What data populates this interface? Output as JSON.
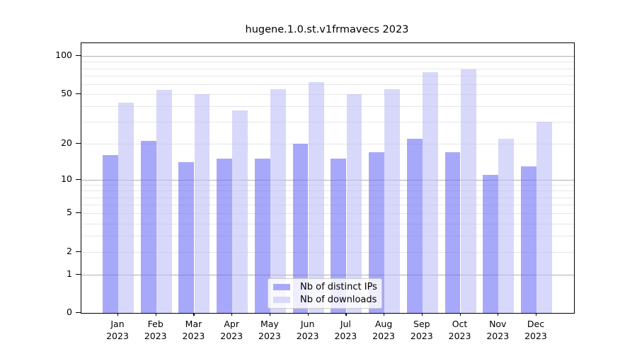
{
  "title": "hugene.1.0.st.v1frmavecs 2023",
  "legend": {
    "items": [
      {
        "label": "Nb of distinct IPs",
        "swatch": "#a8a8fa"
      },
      {
        "label": "Nb of downloads",
        "swatch": "#d8d8fa"
      }
    ]
  },
  "colors": {
    "bar_ips_rgba": "rgba(110,110,247,0.6)",
    "bar_downloads_rgba": "rgba(190,190,247,0.6)",
    "grid_major": "#b0b0b0",
    "grid_minor": "#e7e7e7",
    "spine": "#000000",
    "text": "#000000"
  },
  "chart_data": {
    "type": "bar",
    "title": "hugene.1.0.st.v1frmavecs 2023",
    "x_tick_months": [
      "Jan",
      "Feb",
      "Mar",
      "Apr",
      "May",
      "Jun",
      "Jul",
      "Aug",
      "Sep",
      "Oct",
      "Nov",
      "Dec"
    ],
    "x_tick_year": "2023",
    "categories": [
      "Jan 2023",
      "Feb 2023",
      "Mar 2023",
      "Apr 2023",
      "May 2023",
      "Jun 2023",
      "Jul 2023",
      "Aug 2023",
      "Sep 2023",
      "Oct 2023",
      "Nov 2023",
      "Dec 2023"
    ],
    "series": [
      {
        "name": "Nb of distinct IPs",
        "color": "#a8a8fa",
        "values": [
          16,
          21,
          14,
          15,
          15,
          20,
          15,
          17,
          22,
          17,
          11,
          13
        ]
      },
      {
        "name": "Nb of downloads",
        "color": "#d8d8fa",
        "values": [
          43,
          54,
          50,
          37,
          55,
          62,
          50,
          55,
          75,
          79,
          22,
          30
        ]
      }
    ],
    "xlabel": "",
    "ylabel": "",
    "yscale": "log10(value+1)",
    "ylim": [
      0,
      126
    ],
    "yticks_labeled": [
      100,
      50,
      20,
      10,
      5,
      2,
      1,
      0
    ],
    "gridlines_major": [
      100,
      10,
      1
    ],
    "gridlines_minor": [
      90,
      80,
      70,
      60,
      50,
      40,
      30,
      20,
      9,
      8,
      7,
      6,
      5,
      4,
      3,
      2
    ],
    "grid": true,
    "legend_position": "lower center"
  }
}
